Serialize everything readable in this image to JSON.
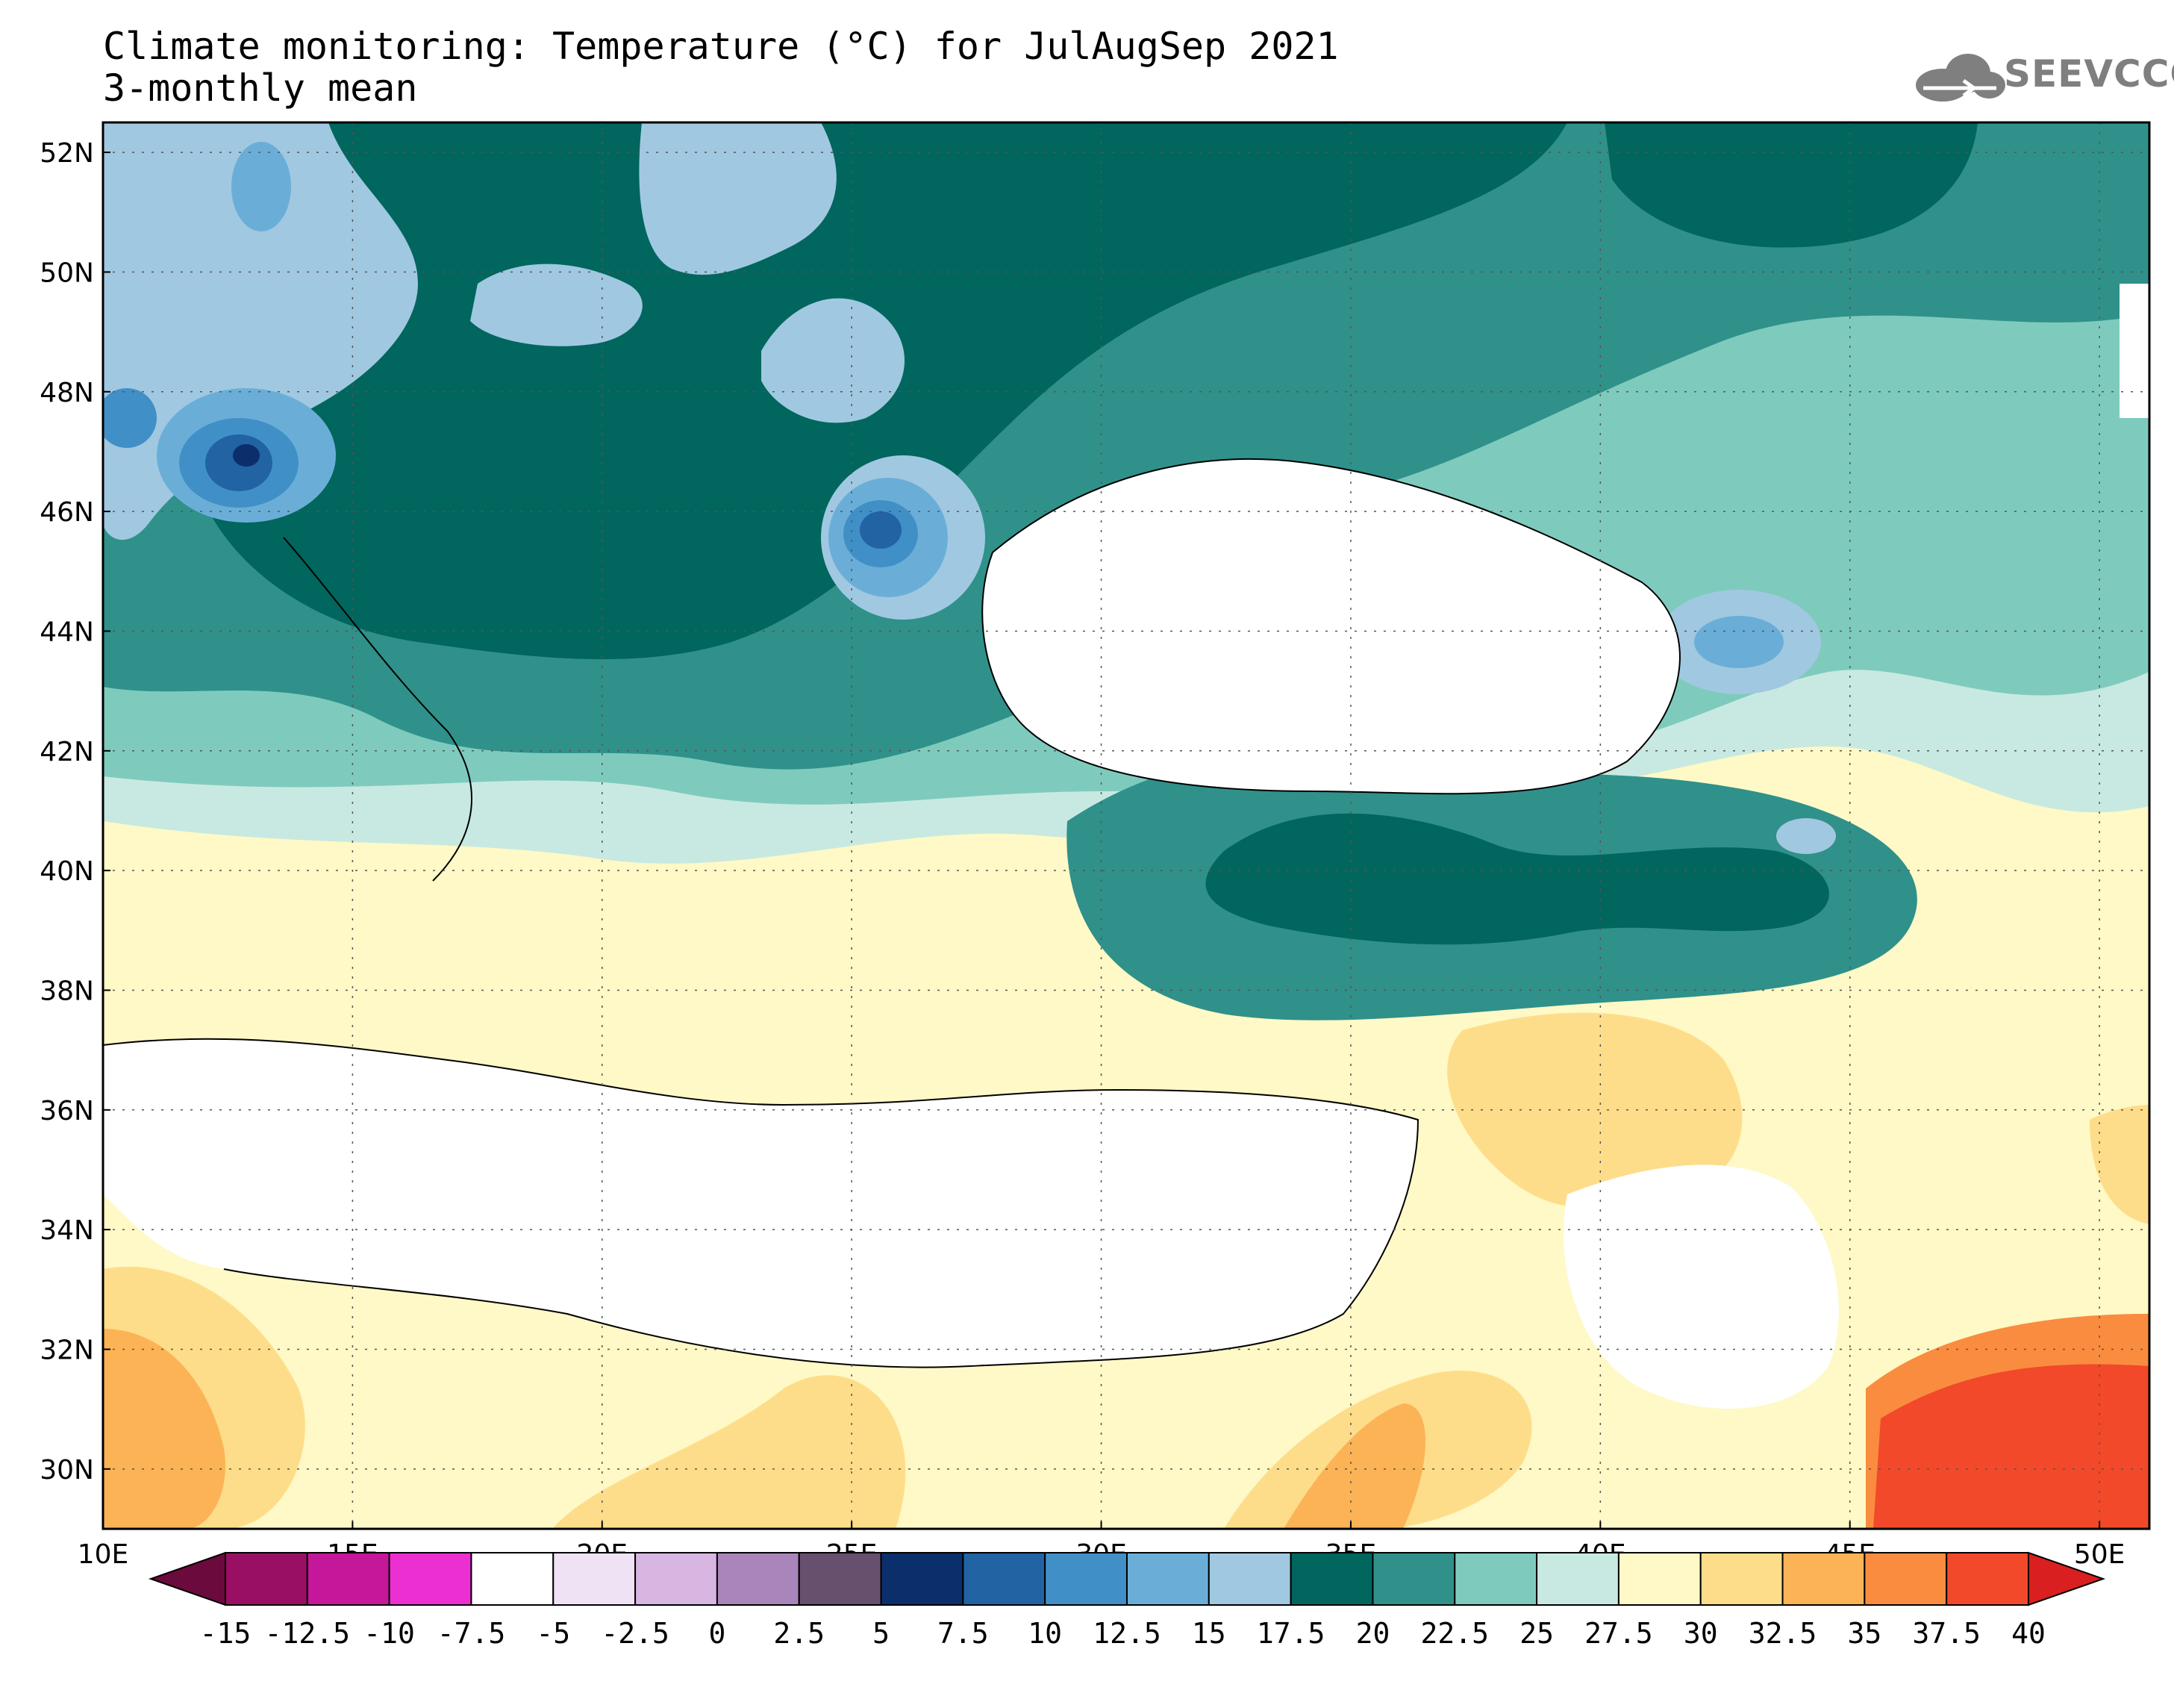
{
  "title": {
    "line1": "Climate monitoring: Temperature (°C) for JulAugSep 2021",
    "line2": "3-monthly mean"
  },
  "logo": {
    "text": "SEEVCCC",
    "icon": "cloud-icon"
  },
  "map": {
    "lon_range": [
      10,
      51
    ],
    "lat_range": [
      29,
      52.5
    ],
    "x_ticks": [
      "10E",
      "15E",
      "20E",
      "25E",
      "30E",
      "35E",
      "40E",
      "45E",
      "50E"
    ],
    "y_ticks": [
      "52N",
      "50N",
      "48N",
      "46N",
      "44N",
      "42N",
      "40N",
      "38N",
      "36N",
      "34N",
      "32N",
      "30N"
    ]
  },
  "colorbar": {
    "labels": [
      "-15",
      "-12.5",
      "-10",
      "-7.5",
      "-5",
      "-2.5",
      "0",
      "2.5",
      "5",
      "7.5",
      "10",
      "12.5",
      "15",
      "17.5",
      "20",
      "22.5",
      "25",
      "27.5",
      "30",
      "32.5",
      "35",
      "37.5",
      "40"
    ],
    "colors": [
      "#6b0a3c",
      "#990f64",
      "#c4179a",
      "#ec2fd0",
      "#ffffff",
      "#efe2f4",
      "#d8b6e2",
      "#a985bb",
      "#66506e",
      "#0b2f6b",
      "#2163a3",
      "#418fc7",
      "#6aaed8",
      "#a1c8e1",
      "#00665e",
      "#2f918a",
      "#7ecbbd",
      "#c8e9e1",
      "#fef9c6",
      "#fedd8a",
      "#fcb356",
      "#fa8c40",
      "#f2492a",
      "#d91f1f"
    ]
  }
}
